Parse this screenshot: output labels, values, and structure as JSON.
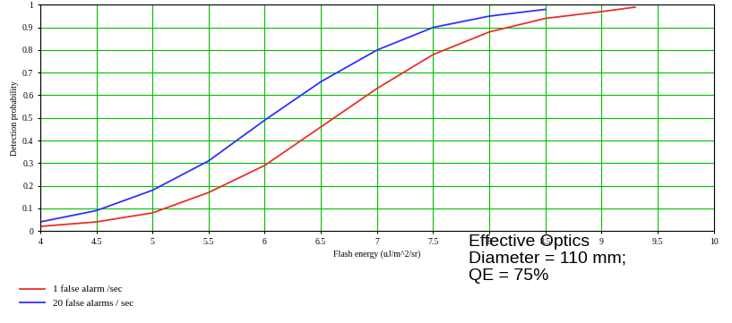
{
  "chart_data": {
    "type": "line",
    "x_label": "Flash energy (uJ/m^2/sr)",
    "y_label": "Detection probability",
    "annotations": [
      "Effective Optics",
      "Diameter = 110 mm;",
      "QE = 75%"
    ],
    "x": [
      4,
      4.5,
      5,
      5.5,
      6,
      6.5,
      7,
      7.5,
      8,
      8.5,
      9,
      9.3
    ],
    "series": [
      {
        "name": "1 false alarm /sec",
        "color": "#e8302a",
        "values": [
          0.02,
          0.04,
          0.08,
          0.17,
          0.29,
          0.46,
          0.63,
          0.78,
          0.88,
          0.94,
          0.97,
          0.99
        ]
      },
      {
        "name": "20 false alarms / sec",
        "color": "#3030ff",
        "values": [
          0.04,
          0.09,
          0.18,
          0.31,
          0.49,
          0.66,
          0.8,
          0.9,
          0.95,
          0.98,
          null,
          null
        ]
      }
    ],
    "xlim": [
      4,
      10
    ],
    "xticks": [
      4,
      4.5,
      5,
      5.5,
      6,
      6.5,
      7,
      7.5,
      8,
      8.5,
      9,
      9.5,
      10
    ],
    "ylim": [
      0,
      1
    ],
    "yticks": [
      0,
      0.1,
      0.2,
      0.3,
      0.4,
      0.5,
      0.6,
      0.7,
      0.8,
      0.9,
      1
    ],
    "grid": true,
    "legend": "lower left"
  }
}
